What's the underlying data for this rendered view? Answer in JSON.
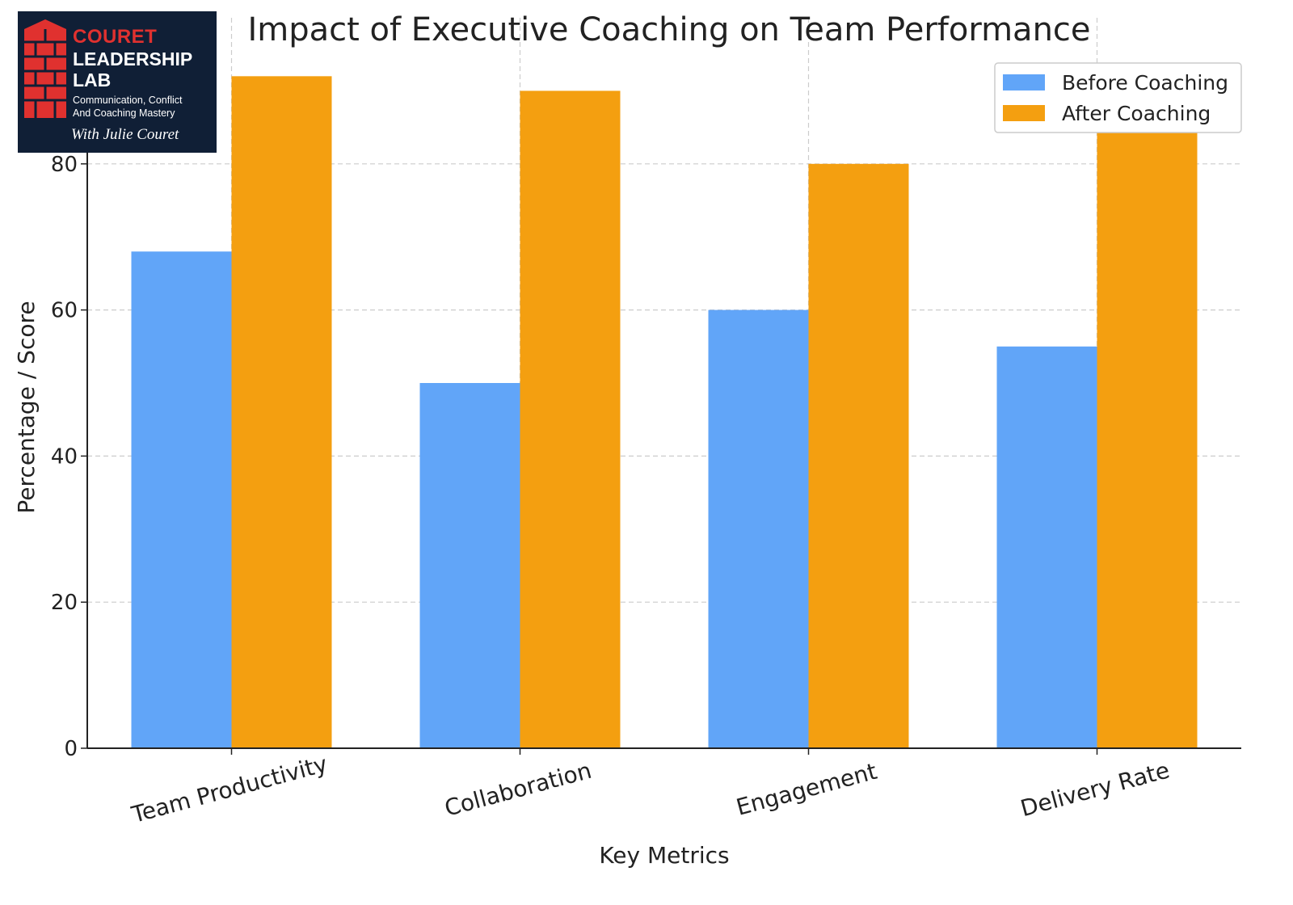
{
  "logo": {
    "brand_line1": "COURET",
    "brand_line2": "LEADERSHIP",
    "brand_line3": "LAB",
    "tagline1": "Communication, Conflict",
    "tagline2": "And Coaching Mastery",
    "signature": "With Julie Couret",
    "colors": {
      "background": "#101f36",
      "accent": "#e0312f",
      "text": "#ffffff"
    }
  },
  "chart_data": {
    "type": "bar",
    "title": "Impact of Executive Coaching on Team Performance",
    "xlabel": "Key Metrics",
    "ylabel": "Percentage / Score",
    "categories": [
      "Team Productivity",
      "Collaboration",
      "Engagement",
      "Delivery Rate"
    ],
    "series": [
      {
        "name": "Before Coaching",
        "values": [
          68,
          50,
          60,
          55
        ],
        "color": "#61a5f8"
      },
      {
        "name": "After Coaching",
        "values": [
          92,
          90,
          80,
          85
        ],
        "color": "#f49f10"
      }
    ],
    "ylim": [
      0,
      100
    ],
    "yticks": [
      0,
      20,
      40,
      60,
      80
    ],
    "grid": true,
    "legend": "top-right",
    "xtick_rotation": "-15"
  }
}
